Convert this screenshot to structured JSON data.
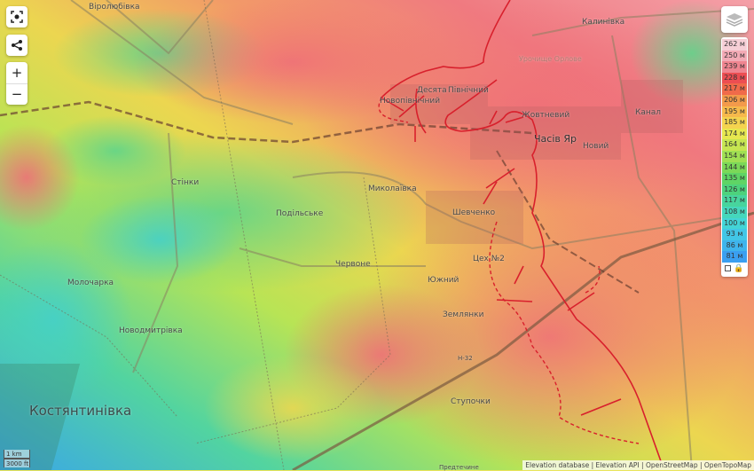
{
  "map": {
    "labels": {
      "virolyubivka": "Віролюбівка",
      "kalynivka": "Калинівка",
      "urochyshche": "Урочище Орлове",
      "desiata": "Десята",
      "pivnichnyi": "Північний",
      "novopivnichnyi": "Новопівнічний",
      "zhovtnevyi": "Жовтневий",
      "chasiv_yar": "Часів Яр",
      "novyi": "Новий",
      "kanal": "Канал",
      "stinky": "Стінки",
      "mykolaivka": "Миколаївка",
      "podilske": "Подільське",
      "shevchenko": "Шевченко",
      "chervone": "Червоне",
      "tsekh2": "Цех №2",
      "yuzhnyi": "Южний",
      "zemlianky": "Землянки",
      "molocharka": "Молочарка",
      "novodmytrivka": "Новодмитрівка",
      "kostiantynivka": "Костянтинівка",
      "stupochky": "Ступочки",
      "predtechyne": "Предтечине",
      "h32": "Н-32"
    }
  },
  "controls": {
    "fullscreen_icon": "fullscreen-icon",
    "share_icon": "share-icon",
    "zoom_in": "+",
    "zoom_out": "−",
    "layers_icon": "layers-icon"
  },
  "legend": {
    "items": [
      {
        "label": "262 м",
        "color": "#f6cfd6"
      },
      {
        "label": "250 м",
        "color": "#f2aab5"
      },
      {
        "label": "239 м",
        "color": "#ef8590"
      },
      {
        "label": "228 м",
        "color": "#ec4e52"
      },
      {
        "label": "217 м",
        "color": "#f06a4a"
      },
      {
        "label": "206 м",
        "color": "#f39a4b"
      },
      {
        "label": "195 м",
        "color": "#f6b94c"
      },
      {
        "label": "185 м",
        "color": "#f4d34f"
      },
      {
        "label": "174 м",
        "color": "#e6e74f"
      },
      {
        "label": "164 м",
        "color": "#c6e551"
      },
      {
        "label": "154 м",
        "color": "#a0df53"
      },
      {
        "label": "144 м",
        "color": "#7bd858"
      },
      {
        "label": "135 м",
        "color": "#5fd465"
      },
      {
        "label": "126 м",
        "color": "#4dd27c"
      },
      {
        "label": "117 м",
        "color": "#48d49d"
      },
      {
        "label": "108 м",
        "color": "#45d7bc"
      },
      {
        "label": "100 м",
        "color": "#43d4d6"
      },
      {
        "label": "93 м",
        "color": "#42c6e6"
      },
      {
        "label": "86 м",
        "color": "#3fb4ec"
      },
      {
        "label": "81 м",
        "color": "#3a9ff0"
      }
    ],
    "lock_icon": "lock-icon"
  },
  "scale": {
    "metric": "1 km",
    "imperial": "3000 ft"
  },
  "attribution": {
    "elevation_db": "Elevation database",
    "elevation_api": "Elevation API",
    "osm": "OpenStreetMap",
    "otm": "OpenTopoMap",
    "sep": " | "
  },
  "colors": {
    "front_line": "#d8202c",
    "high": "#ef8590",
    "low": "#3a9ff0"
  }
}
